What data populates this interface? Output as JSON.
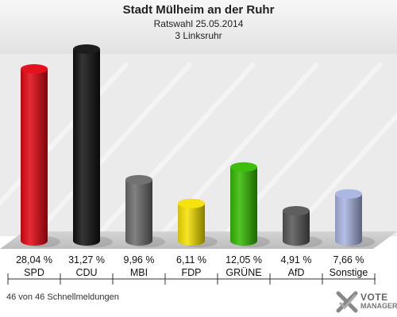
{
  "header": {
    "title": "Stadt Mülheim an der Ruhr",
    "subtitle1": "Ratswahl 25.05.2014",
    "subtitle2": "3 Linksruhr"
  },
  "footer": {
    "text": "46 von 46 Schnellmeldungen"
  },
  "logo": {
    "vote": "VOTE",
    "manager": "MANAGER"
  },
  "chart_data": {
    "type": "bar",
    "title": "Stadt Mülheim an der Ruhr",
    "categories": [
      "SPD",
      "CDU",
      "MBI",
      "FDP",
      "GRÜNE",
      "AfD",
      "Sonstige"
    ],
    "values": [
      28.04,
      31.27,
      9.96,
      6.11,
      12.05,
      4.91,
      7.66
    ],
    "value_labels": [
      "28,04 %",
      "31,27 %",
      "9,96 %",
      "6,11 %",
      "12,05 %",
      "4,91 %",
      "7,66 %"
    ],
    "colors": [
      "#e30613",
      "#111111",
      "#6b6b6b",
      "#f5e100",
      "#33bb00",
      "#555555",
      "#a8b4e0"
    ],
    "ylim": [
      0,
      31.27
    ],
    "grid": false,
    "legend": "none"
  }
}
